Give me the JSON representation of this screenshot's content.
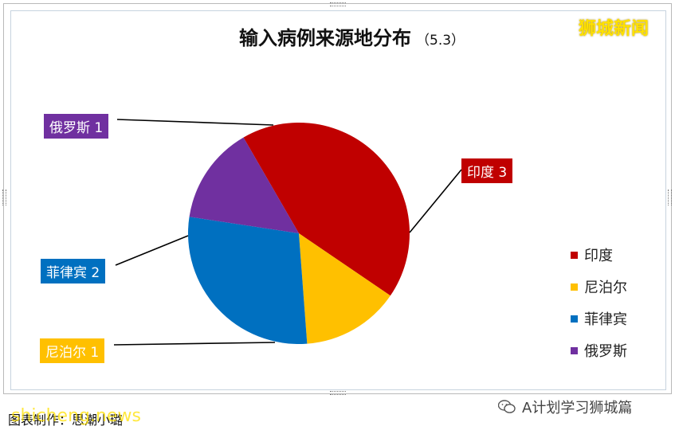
{
  "chart_data": {
    "type": "pie",
    "title": "输入病例来源地分布",
    "subtitle": "（5.3）",
    "categories": [
      "印度",
      "尼泊尔",
      "菲律宾",
      "俄罗斯"
    ],
    "values": [
      3,
      1,
      2,
      1
    ],
    "colors": [
      "#c00000",
      "#ffc000",
      "#0070c0",
      "#7030a0"
    ],
    "data_labels": [
      "印度 3",
      "尼泊尔 1",
      "菲律宾 2",
      "俄罗斯 1"
    ],
    "legend": [
      "印度",
      "尼泊尔",
      "菲律宾",
      "俄罗斯"
    ],
    "legend_position": "right"
  },
  "branding": {
    "top_watermark": "狮城新闻",
    "credit_text": "图表制作：思潮小璐",
    "bottom_watermark": "shicheng.news",
    "account_label": "A计划学习狮城篇",
    "wechat_icon": "wechat-icon"
  }
}
